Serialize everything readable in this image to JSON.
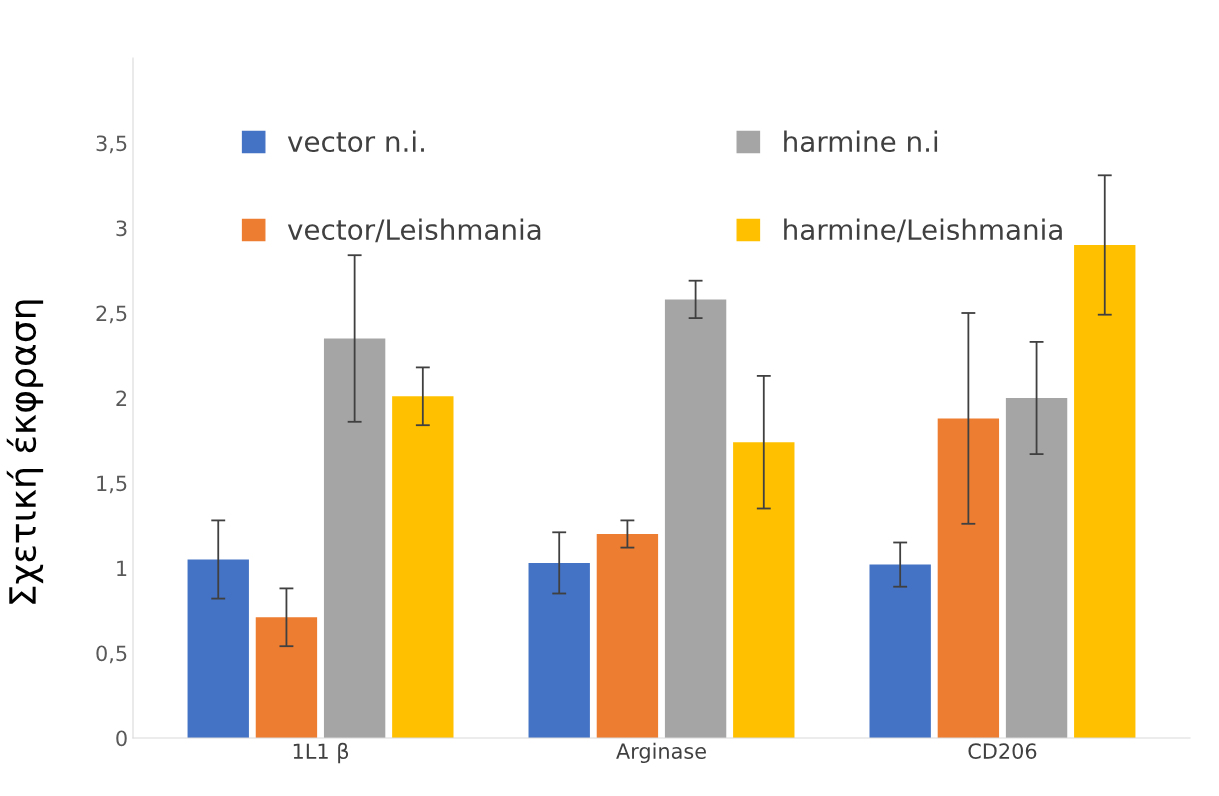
{
  "chart_data": {
    "type": "bar",
    "ylabel": "Σχετική έκφραση",
    "categories": [
      "1L1 β",
      "Arginase",
      "CD206"
    ],
    "series": [
      {
        "name": "vector n.i.",
        "color": "#4472c4",
        "values": [
          1.05,
          1.03,
          1.02
        ],
        "errors": [
          0.23,
          0.18,
          0.13
        ]
      },
      {
        "name": "vector/Leishmania",
        "color": "#ed7d31",
        "values": [
          0.71,
          1.2,
          1.88
        ],
        "errors": [
          0.17,
          0.08,
          0.62
        ]
      },
      {
        "name": "harmine n.i",
        "color": "#a5a5a5",
        "values": [
          2.35,
          2.58,
          2.0
        ],
        "errors": [
          0.49,
          0.11,
          0.33
        ]
      },
      {
        "name": "harmine/Leishmania",
        "color": "#ffc000",
        "values": [
          2.01,
          1.74,
          2.9
        ],
        "errors": [
          0.17,
          0.39,
          0.41
        ]
      }
    ],
    "ylim": [
      0,
      4
    ],
    "yticks": [
      0,
      {
        "value": 0.5,
        "label": "0,5"
      },
      1,
      {
        "value": 1.5,
        "label": "1,5"
      },
      2,
      {
        "value": 2.5,
        "label": "2,5"
      },
      3,
      {
        "value": 3.5,
        "label": "3,5"
      }
    ],
    "legend": "top",
    "grid": false
  }
}
